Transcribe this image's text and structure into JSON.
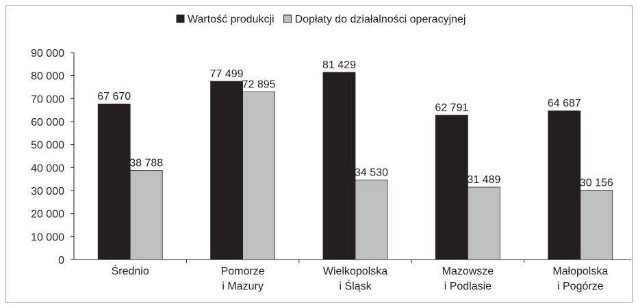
{
  "chart_data": {
    "type": "bar",
    "categories": [
      "Średnio",
      "Pomorze\ni Mazury",
      "Wielkopolska\ni Śląsk",
      "Mazowsze\ni Podlasie",
      "Małopolska\ni Pogórze"
    ],
    "series": [
      {
        "name": "Wartość produkcji",
        "color": "#231f20",
        "values": [
          67670,
          77499,
          81429,
          62791,
          64687
        ],
        "value_labels": [
          "67 670",
          "77 499",
          "81 429",
          "62 791",
          "64 687"
        ]
      },
      {
        "name": "Dopłaty do działalności operacyjnej",
        "color": "#bcbec0",
        "values": [
          38788,
          72895,
          34530,
          31489,
          30156
        ],
        "value_labels": [
          "38 788",
          "72 895",
          "34 530",
          "31 489",
          "30 156"
        ]
      }
    ],
    "ylim": [
      0,
      90000
    ],
    "yticks": [
      {
        "value": 0,
        "label": "0"
      },
      {
        "value": 10000,
        "label": "10 000"
      },
      {
        "value": 20000,
        "label": "20 000"
      },
      {
        "value": 30000,
        "label": "30 000"
      },
      {
        "value": 40000,
        "label": "40 000"
      },
      {
        "value": 50000,
        "label": "50 000"
      },
      {
        "value": 60000,
        "label": "60 000"
      },
      {
        "value": 70000,
        "label": "70 000"
      },
      {
        "value": 80000,
        "label": "80 000"
      },
      {
        "value": 90000,
        "label": "90 000"
      }
    ],
    "legend": "top",
    "grid": false
  }
}
